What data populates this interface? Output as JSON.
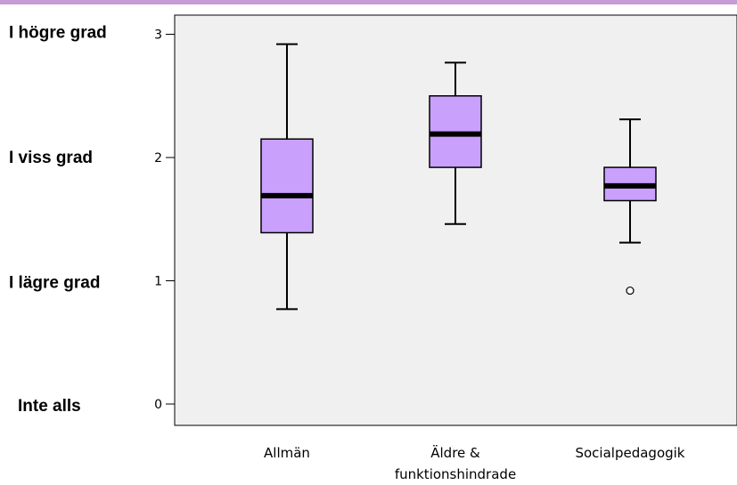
{
  "colors": {
    "box_fill": "#c9a0fc",
    "plot_background": "#f0f0f0",
    "top_rule": "#c79bd3"
  },
  "chart_data": {
    "type": "boxplot",
    "title": "",
    "xlabel": "",
    "ylabel": "",
    "ylim": [
      0,
      3.2
    ],
    "y_ticks": [
      0,
      1,
      2,
      3
    ],
    "y_category_labels": [
      {
        "value": 3,
        "label": "I högre grad"
      },
      {
        "value": 2,
        "label": "I viss grad"
      },
      {
        "value": 1,
        "label": "I lägre grad"
      },
      {
        "value": 0,
        "label": "Inte alls"
      }
    ],
    "categories": [
      "Allmän",
      "Äldre & funktionshindrade",
      "Socialpedagogik"
    ],
    "category_label_lines": [
      [
        "Allmän"
      ],
      [
        "Äldre &",
        "funktionshindrade"
      ],
      [
        "Socialpedagogik"
      ]
    ],
    "boxes": [
      {
        "category": "Allmän",
        "min": 0.77,
        "q1": 1.39,
        "median": 1.69,
        "q3": 2.15,
        "max": 2.92,
        "outliers": []
      },
      {
        "category": "Äldre & funktionshindrade",
        "min": 1.46,
        "q1": 1.92,
        "median": 2.19,
        "q3": 2.5,
        "max": 2.77,
        "outliers": []
      },
      {
        "category": "Socialpedagogik",
        "min": 1.31,
        "q1": 1.65,
        "median": 1.77,
        "q3": 1.92,
        "max": 2.31,
        "outliers": [
          0.92
        ]
      }
    ],
    "grid": false,
    "legend": "none"
  }
}
